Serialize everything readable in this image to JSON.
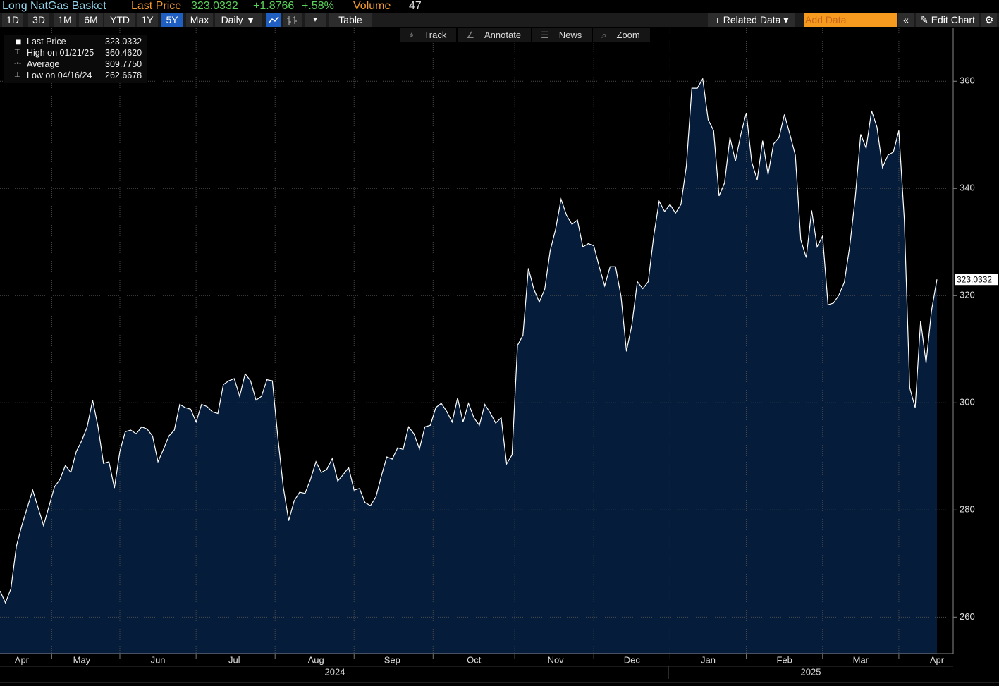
{
  "header": {
    "title": "Long NatGas Basket",
    "last_price_label": "Last Price",
    "last_price": "323.0332",
    "change": "+1.8766",
    "change_pct": "+.58%",
    "volume_label": "Volume",
    "volume": "47"
  },
  "toolbar": {
    "ranges": [
      "1D",
      "3D",
      "1M",
      "6M",
      "YTD",
      "1Y",
      "5Y",
      "Max"
    ],
    "active_range": "5Y",
    "frequency": "Daily ▼",
    "table": "Table",
    "related": "+ Related Data ▾",
    "add_data": "Add Data",
    "edit": "Edit Chart"
  },
  "tools": [
    "Track",
    "Annotate",
    "News",
    "Zoom"
  ],
  "legend": [
    {
      "label": "Last Price",
      "value": "323.0332"
    },
    {
      "label": "High on 01/21/25",
      "value": "360.4620"
    },
    {
      "label": "Average",
      "value": "309.7750"
    },
    {
      "label": "Low on 04/16/24",
      "value": "262.6678"
    }
  ],
  "chart_data": {
    "type": "area",
    "categories": [
      null,
      null,
      null,
      null,
      "Apr",
      null,
      null,
      null,
      null,
      null,
      null,
      null,
      null,
      null,
      null,
      "May",
      null,
      null,
      null,
      null,
      null,
      null,
      null,
      null,
      null,
      null,
      null,
      null,
      null,
      "Jun",
      null,
      null,
      null,
      null,
      null,
      null,
      null,
      null,
      null,
      null,
      null,
      null,
      null,
      "Jul",
      null,
      null,
      null,
      null,
      null,
      null,
      null,
      null,
      null,
      null,
      null,
      null,
      null,
      null,
      "Aug",
      null,
      null,
      null,
      null,
      null,
      null,
      null,
      null,
      null,
      null,
      null,
      null,
      null,
      "Sep",
      null,
      null,
      null,
      null,
      null,
      null,
      null,
      null,
      null,
      null,
      null,
      null,
      null,
      null,
      "Oct",
      null,
      null,
      null,
      null,
      null,
      null,
      null,
      null,
      null,
      null,
      null,
      null,
      null,
      null,
      "Nov",
      null,
      null,
      null,
      null,
      null,
      null,
      null,
      null,
      null,
      null,
      null,
      null,
      null,
      "Dec",
      null,
      null,
      null,
      null,
      null,
      null,
      null,
      null,
      null,
      null,
      null,
      null,
      null,
      "Jan",
      null,
      null,
      null,
      null,
      null,
      null,
      null,
      null,
      null,
      null,
      null,
      null,
      null,
      "Feb",
      null,
      null,
      null,
      null,
      null,
      null,
      null,
      null,
      null,
      null,
      null,
      null,
      null,
      "Mar",
      null,
      null,
      null,
      null,
      null,
      null,
      null,
      null,
      null,
      null,
      null,
      null,
      null,
      "Apr"
    ],
    "year_labels": [
      "2024",
      "2025"
    ],
    "series": [
      {
        "name": "Last Price",
        "color": "#ffffff",
        "fill": "#051d3b",
        "values": [
          264.9,
          262.6678,
          265.3,
          273.2,
          277.1,
          280.4,
          283.7,
          280.4,
          277.1,
          280.7,
          284.3,
          285.7,
          288.3,
          287.0,
          290.9,
          292.9,
          295.5,
          300.5,
          295.5,
          288.7,
          289.0,
          284.1,
          290.9,
          294.6,
          294.9,
          294.2,
          295.5,
          295.1,
          293.8,
          289.0,
          291.3,
          293.8,
          294.9,
          299.7,
          299.1,
          298.8,
          296.4,
          299.7,
          299.3,
          298.3,
          298.0,
          303.4,
          304.1,
          304.5,
          301.2,
          305.4,
          304.1,
          300.5,
          301.2,
          304.3,
          304.1,
          293.6,
          284.3,
          278.0,
          281.7,
          283.3,
          283.1,
          285.7,
          289.0,
          287.0,
          287.6,
          289.6,
          285.4,
          286.6,
          287.9,
          283.7,
          284.0,
          281.4,
          280.8,
          282.4,
          286.3,
          289.9,
          289.5,
          291.6,
          291.3,
          295.5,
          294.2,
          291.4,
          295.5,
          295.8,
          299.1,
          299.9,
          298.4,
          296.4,
          300.9,
          296.4,
          299.9,
          297.2,
          295.8,
          299.7,
          298.1,
          296.2,
          297.2,
          288.6,
          290.3,
          310.7,
          312.6,
          325.1,
          321.2,
          318.8,
          321.2,
          328.4,
          332.4,
          338.0,
          335.0,
          333.3,
          334.1,
          329.1,
          329.7,
          329.3,
          325.4,
          321.8,
          325.4,
          325.4,
          319.9,
          309.6,
          314.6,
          322.6,
          321.3,
          322.6,
          331.1,
          337.6,
          335.7,
          337.0,
          335.4,
          337.0,
          344.2,
          358.7,
          358.7,
          360.462,
          352.8,
          350.8,
          338.6,
          341.0,
          349.5,
          345.1,
          350.1,
          354.1,
          344.9,
          341.6,
          348.9,
          342.6,
          348.3,
          349.5,
          353.8,
          350.1,
          346.2,
          330.4,
          327.1,
          335.9,
          329.1,
          331.1,
          318.3,
          318.6,
          320.1,
          322.5,
          329.3,
          338.3,
          350.1,
          347.5,
          354.5,
          351.4,
          343.9,
          346.2,
          346.8,
          350.8,
          334.3,
          302.8,
          299.1,
          315.3,
          307.4,
          317.2,
          323.0332
        ]
      }
    ],
    "ylim": [
      253.2,
      369.9
    ],
    "yticks": [
      260,
      280,
      300,
      320,
      340,
      360
    ],
    "grid": true
  }
}
